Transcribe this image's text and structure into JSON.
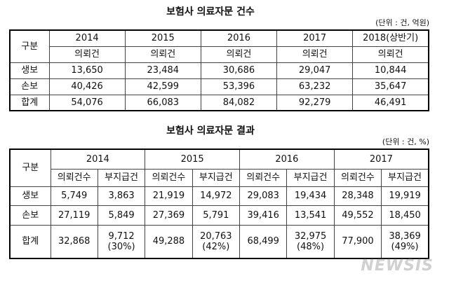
{
  "table1": {
    "title": "보험사 의료자문 건수",
    "unit": "(단위 : 건, 억원)",
    "corner": "구분",
    "years": [
      "2014",
      "2015",
      "2016",
      "2017",
      "2018(상반기)"
    ],
    "subheader": [
      "의뢰건",
      "의뢰건",
      "의뢰건",
      "의뢰건",
      "의뢰건"
    ],
    "rows": [
      [
        "생보",
        "13,650",
        "23,484",
        "30,686",
        "29,047",
        "10,844"
      ],
      [
        "손보",
        "40,426",
        "42,599",
        "53,396",
        "63,232",
        "35,647"
      ],
      [
        "합계",
        "54,076",
        "66,083",
        "84,082",
        "92,279",
        "46,491"
      ]
    ]
  },
  "table2": {
    "title": "보험사 의료자문 결과",
    "unit": "(단위 : 건, %)",
    "corner": "구분",
    "years": [
      "2014",
      "2015",
      "2016",
      "2017"
    ],
    "subheader": [
      "의뢰건수",
      "부지급건",
      "의뢰건수",
      "부지급건",
      "의뢰건수",
      "부지급건",
      "의뢰건수",
      "부지급건"
    ],
    "rows": [
      [
        "생보",
        "5,749",
        "3,863",
        "21,919",
        "14,972",
        "29,083",
        "19,434",
        "28,348",
        "19,919"
      ],
      [
        "손보",
        "27,119",
        "5,849",
        "27,369",
        "5,791",
        "39,416",
        "13,541",
        "49,552",
        "18,450"
      ],
      [
        "합계",
        "32,868",
        "9,712",
        "49,288",
        "20,763",
        "68,499",
        "32,975",
        "77,900",
        "38,369"
      ]
    ],
    "percents": [
      "(30%)",
      "(42%)",
      "(48%)",
      "(49%)"
    ]
  },
  "watermark": "NEWSIS"
}
